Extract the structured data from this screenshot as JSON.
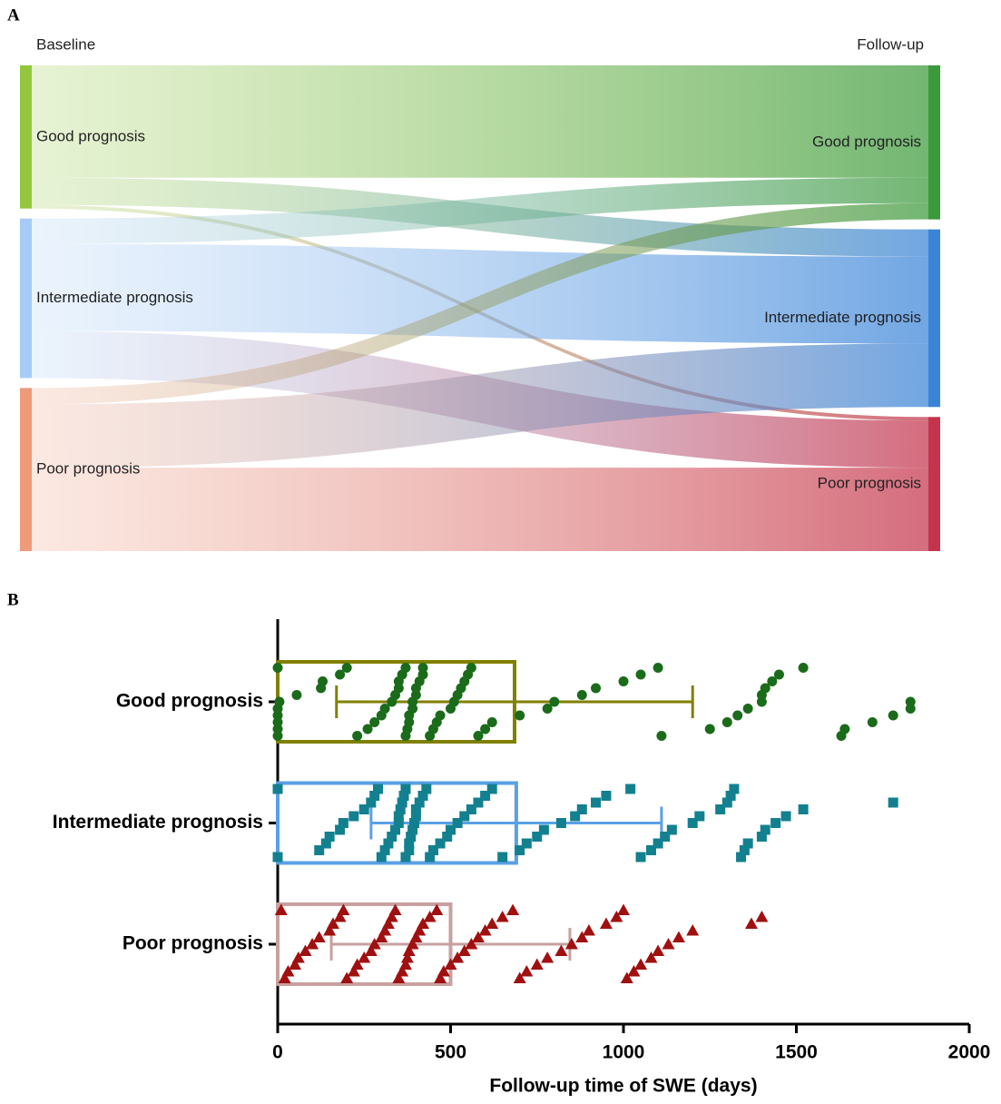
{
  "chart_data": [
    {
      "type": "sankey",
      "panel": "A",
      "columns": [
        "Baseline",
        "Follow-up"
      ],
      "nodes": [
        [
          {
            "label": "Good prognosis",
            "color": "#93c83e"
          },
          {
            "label": "Intermediate prognosis",
            "color": "#a6cbf6"
          },
          {
            "label": "Poor prognosis",
            "color": "#ef9a7a"
          }
        ],
        [
          {
            "label": "Good prognosis",
            "color": "#3c9a3c"
          },
          {
            "label": "Intermediate prognosis",
            "color": "#3a84d8"
          },
          {
            "label": "Poor prognosis",
            "color": "#c4344c"
          }
        ]
      ],
      "flows": [
        [
          62,
          15,
          2
        ],
        [
          14,
          48,
          26
        ],
        [
          9,
          35,
          46
        ]
      ]
    },
    {
      "type": "strip",
      "panel": "B",
      "xlabel": "Follow-up time of SWE (days)",
      "categories": [
        "Good prognosis",
        "Intermediate prognosis",
        "Poor prognosis"
      ],
      "xlim": [
        0,
        2000
      ],
      "xticks": [
        0,
        500,
        1000,
        1500,
        2000
      ],
      "groups": [
        {
          "marker": "circle",
          "color": "#1a6b1a",
          "bar_color": "#808000",
          "mean": 685,
          "sd": 515,
          "values": [
            0,
            0,
            0,
            0,
            0,
            0,
            5,
            55,
            125,
            130,
            180,
            200,
            230,
            260,
            280,
            300,
            310,
            330,
            340,
            350,
            350,
            360,
            370,
            370,
            375,
            380,
            380,
            390,
            390,
            400,
            400,
            410,
            420,
            420,
            440,
            450,
            460,
            470,
            500,
            510,
            520,
            530,
            540,
            550,
            560,
            580,
            600,
            620,
            700,
            780,
            800,
            880,
            920,
            1000,
            1050,
            1100,
            1110,
            1250,
            1300,
            1330,
            1360,
            1400,
            1400,
            1410,
            1430,
            1450,
            1520,
            1630,
            1640,
            1720,
            1780,
            1830,
            1830
          ]
        },
        {
          "marker": "square",
          "color": "#13808f",
          "bar_color": "#5aa0e6",
          "mean": 690,
          "sd": 420,
          "values": [
            0,
            0,
            120,
            140,
            150,
            180,
            190,
            220,
            250,
            270,
            280,
            290,
            300,
            310,
            320,
            330,
            340,
            350,
            350,
            355,
            360,
            365,
            370,
            370,
            380,
            380,
            385,
            390,
            395,
            400,
            400,
            410,
            420,
            430,
            440,
            450,
            470,
            490,
            500,
            520,
            540,
            560,
            580,
            600,
            620,
            650,
            700,
            720,
            750,
            770,
            820,
            860,
            880,
            920,
            950,
            1020,
            1050,
            1080,
            1100,
            1120,
            1140,
            1200,
            1220,
            1280,
            1300,
            1310,
            1320,
            1340,
            1350,
            1360,
            1400,
            1410,
            1440,
            1470,
            1520,
            1780
          ]
        },
        {
          "marker": "triangle",
          "color": "#a01010",
          "bar_color": "#c8a0a0",
          "mean": 500,
          "sd": 345,
          "values": [
            10,
            20,
            30,
            50,
            60,
            80,
            100,
            120,
            150,
            160,
            180,
            190,
            200,
            220,
            230,
            250,
            270,
            280,
            300,
            310,
            320,
            330,
            340,
            350,
            360,
            370,
            375,
            380,
            390,
            400,
            410,
            420,
            440,
            460,
            470,
            480,
            500,
            520,
            540,
            560,
            580,
            600,
            620,
            650,
            680,
            700,
            720,
            750,
            780,
            820,
            850,
            880,
            900,
            950,
            980,
            1000,
            1010,
            1030,
            1050,
            1080,
            1100,
            1130,
            1160,
            1200,
            1370,
            1400
          ]
        }
      ]
    }
  ]
}
